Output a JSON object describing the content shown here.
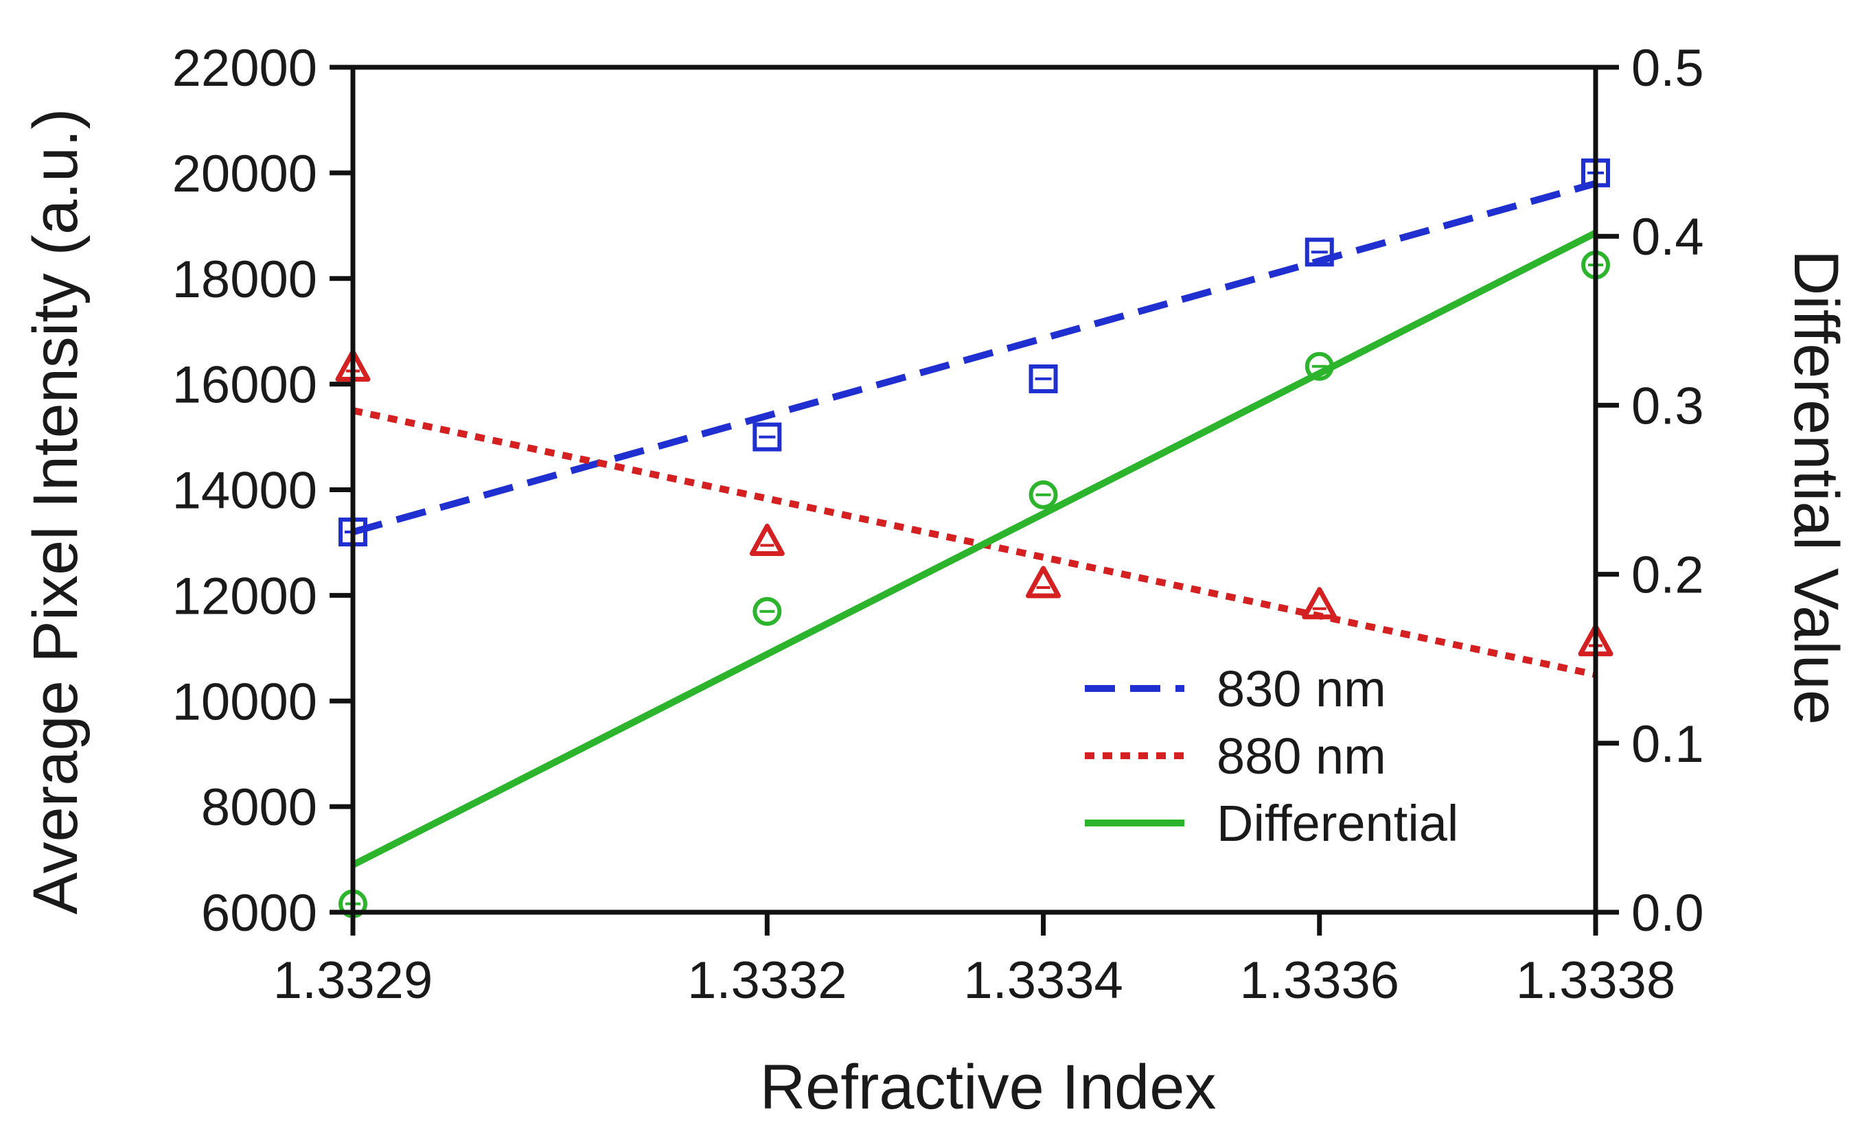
{
  "chart_data": {
    "type": "scatter",
    "title": "",
    "xlabel": "Refractive Index",
    "ylabel": "Average Pixel Intensity (a.u.)",
    "y2label": "Differential Value",
    "xlim": [
      1.3329,
      1.3338
    ],
    "ylim": [
      6000,
      22000
    ],
    "y2lim": [
      0.0,
      0.5
    ],
    "x_ticks": [
      1.3329,
      1.3332,
      1.3334,
      1.3336,
      1.3338
    ],
    "x_tick_labels": [
      "1.3329",
      "1.3332",
      "1.3334",
      "1.3336",
      "1.3338"
    ],
    "y_ticks": [
      6000,
      8000,
      10000,
      12000,
      14000,
      16000,
      18000,
      20000,
      22000
    ],
    "y_tick_labels": [
      "6000",
      "8000",
      "10000",
      "12000",
      "14000",
      "16000",
      "18000",
      "20000",
      "22000"
    ],
    "y2_ticks": [
      0.0,
      0.1,
      0.2,
      0.3,
      0.4,
      0.5
    ],
    "y2_tick_labels": [
      "0.0",
      "0.1",
      "0.2",
      "0.3",
      "0.4",
      "0.5"
    ],
    "grid": false,
    "legend_position": "bottom-right",
    "series": [
      {
        "name": "830 nm",
        "axis": "left",
        "marker": "square",
        "color": "#1f2fd0",
        "line_style": "dashed",
        "x": [
          1.3329,
          1.3332,
          1.3334,
          1.3336,
          1.3338
        ],
        "y": [
          13200,
          15000,
          16100,
          18500,
          20000
        ],
        "fit": [
          13200,
          19800
        ]
      },
      {
        "name": "880 nm",
        "axis": "left",
        "marker": "triangle",
        "color": "#d42020",
        "line_style": "dotted",
        "x": [
          1.3329,
          1.3332,
          1.3334,
          1.3336,
          1.3338
        ],
        "y": [
          16300,
          13000,
          12200,
          11800,
          11100
        ],
        "fit": [
          15500,
          10500
        ]
      },
      {
        "name": "Differential",
        "axis": "right",
        "marker": "circle",
        "color": "#2cb52c",
        "line_style": "solid",
        "x": [
          1.3329,
          1.3332,
          1.3334,
          1.3336,
          1.3338
        ],
        "y": [
          0.005,
          0.178,
          0.247,
          0.323,
          0.383
        ],
        "fit": [
          0.028,
          0.402
        ]
      }
    ]
  }
}
